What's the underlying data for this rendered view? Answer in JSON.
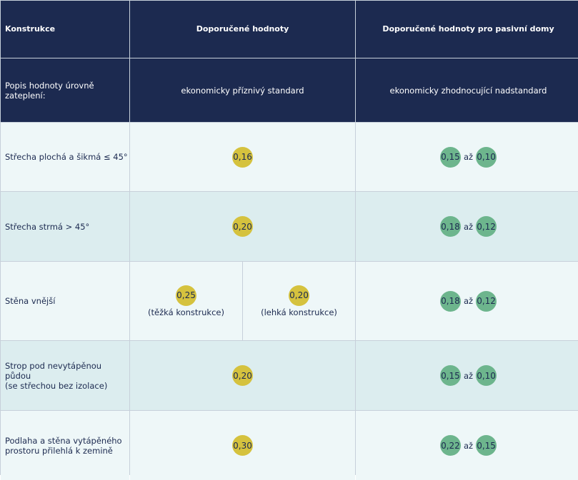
{
  "header": {
    "col1": "Konstrukce",
    "col2": "Doporučené hodnoty",
    "col3": "Doporučené hodnoty pro pasivní domy"
  },
  "subheader": {
    "label": "Popis hodnoty úrovně zateplení:",
    "standard": "ekonomicky příznivý standard",
    "passive": "ekonomicky zhodnocující nadstandard"
  },
  "separator": "až",
  "rows": [
    {
      "label": "Střecha plochá a šikmá ≤ 45°",
      "recommended": "0,16",
      "passive_from": "0,15",
      "passive_to": "0,10"
    },
    {
      "label": "Střecha strmá > 45°",
      "recommended": "0,20",
      "passive_from": "0,18",
      "passive_to": "0,12"
    },
    {
      "label": "Stěna vnější",
      "heavy_value": "0,25",
      "heavy_label": "(těžká konstrukce)",
      "light_value": "0,20",
      "light_label": "(lehká konstrukce)",
      "passive_from": "0,18",
      "passive_to": "0,12"
    },
    {
      "label_line1": "Strop pod nevytápěnou půdou",
      "label_line2": "(se střechou bez izolace)",
      "recommended": "0,20",
      "passive_from": "0,15",
      "passive_to": "0,10"
    },
    {
      "label_line1": "Podlaha a stěna vytápěného",
      "label_line2": "prostoru přilehlá k zemině",
      "recommended": "0,30",
      "passive_from": "0,22",
      "passive_to": "0,15"
    }
  ],
  "colors": {
    "header_bg": "#1c2a50",
    "recommended_badge": "#d5c23e",
    "passive_badge": "#6db58d",
    "row_light": "#eef7f8",
    "row_tint": "#dcedef"
  }
}
